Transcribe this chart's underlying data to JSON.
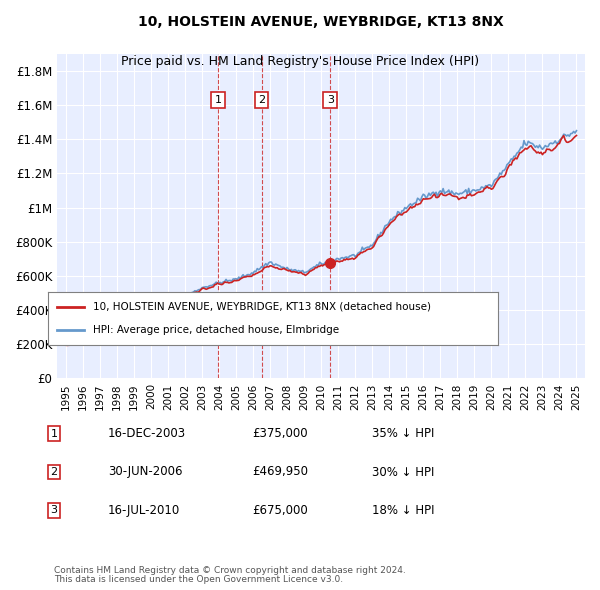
{
  "title": "10, HOLSTEIN AVENUE, WEYBRIDGE, KT13 8NX",
  "subtitle": "Price paid vs. HM Land Registry's House Price Index (HPI)",
  "ylabel": "",
  "background_color": "#f0f4ff",
  "plot_bg_color": "#e8eeff",
  "ylim": [
    0,
    1900000
  ],
  "yticks": [
    0,
    200000,
    400000,
    600000,
    800000,
    1000000,
    1200000,
    1400000,
    1600000,
    1800000
  ],
  "ytick_labels": [
    "£0",
    "£200K",
    "£400K",
    "£600K",
    "£800K",
    "£1M",
    "£1.2M",
    "£1.4M",
    "£1.6M",
    "£1.8M"
  ],
  "hpi_color": "#6699cc",
  "price_color": "#cc2222",
  "sale_marker_color": "#cc2222",
  "vline_color": "#cc2222",
  "transactions": [
    {
      "num": 1,
      "date_num": 2003.96,
      "price": 375000,
      "label": "16-DEC-2003",
      "pct": "35%"
    },
    {
      "num": 2,
      "date_num": 2006.5,
      "price": 469950,
      "label": "30-JUN-2006",
      "pct": "30%"
    },
    {
      "num": 3,
      "date_num": 2010.54,
      "price": 675000,
      "label": "16-JUL-2010",
      "pct": "18%"
    }
  ],
  "legend_line1": "10, HOLSTEIN AVENUE, WEYBRIDGE, KT13 8NX (detached house)",
  "legend_line2": "HPI: Average price, detached house, Elmbridge",
  "footer1": "Contains HM Land Registry data © Crown copyright and database right 2024.",
  "footer2": "This data is licensed under the Open Government Licence v3.0.",
  "xtick_years": [
    1995,
    1996,
    1997,
    1998,
    1999,
    2000,
    2001,
    2002,
    2003,
    2004,
    2005,
    2006,
    2007,
    2008,
    2009,
    2010,
    2011,
    2012,
    2013,
    2014,
    2015,
    2016,
    2017,
    2018,
    2019,
    2020,
    2021,
    2022,
    2023,
    2024,
    2025
  ]
}
